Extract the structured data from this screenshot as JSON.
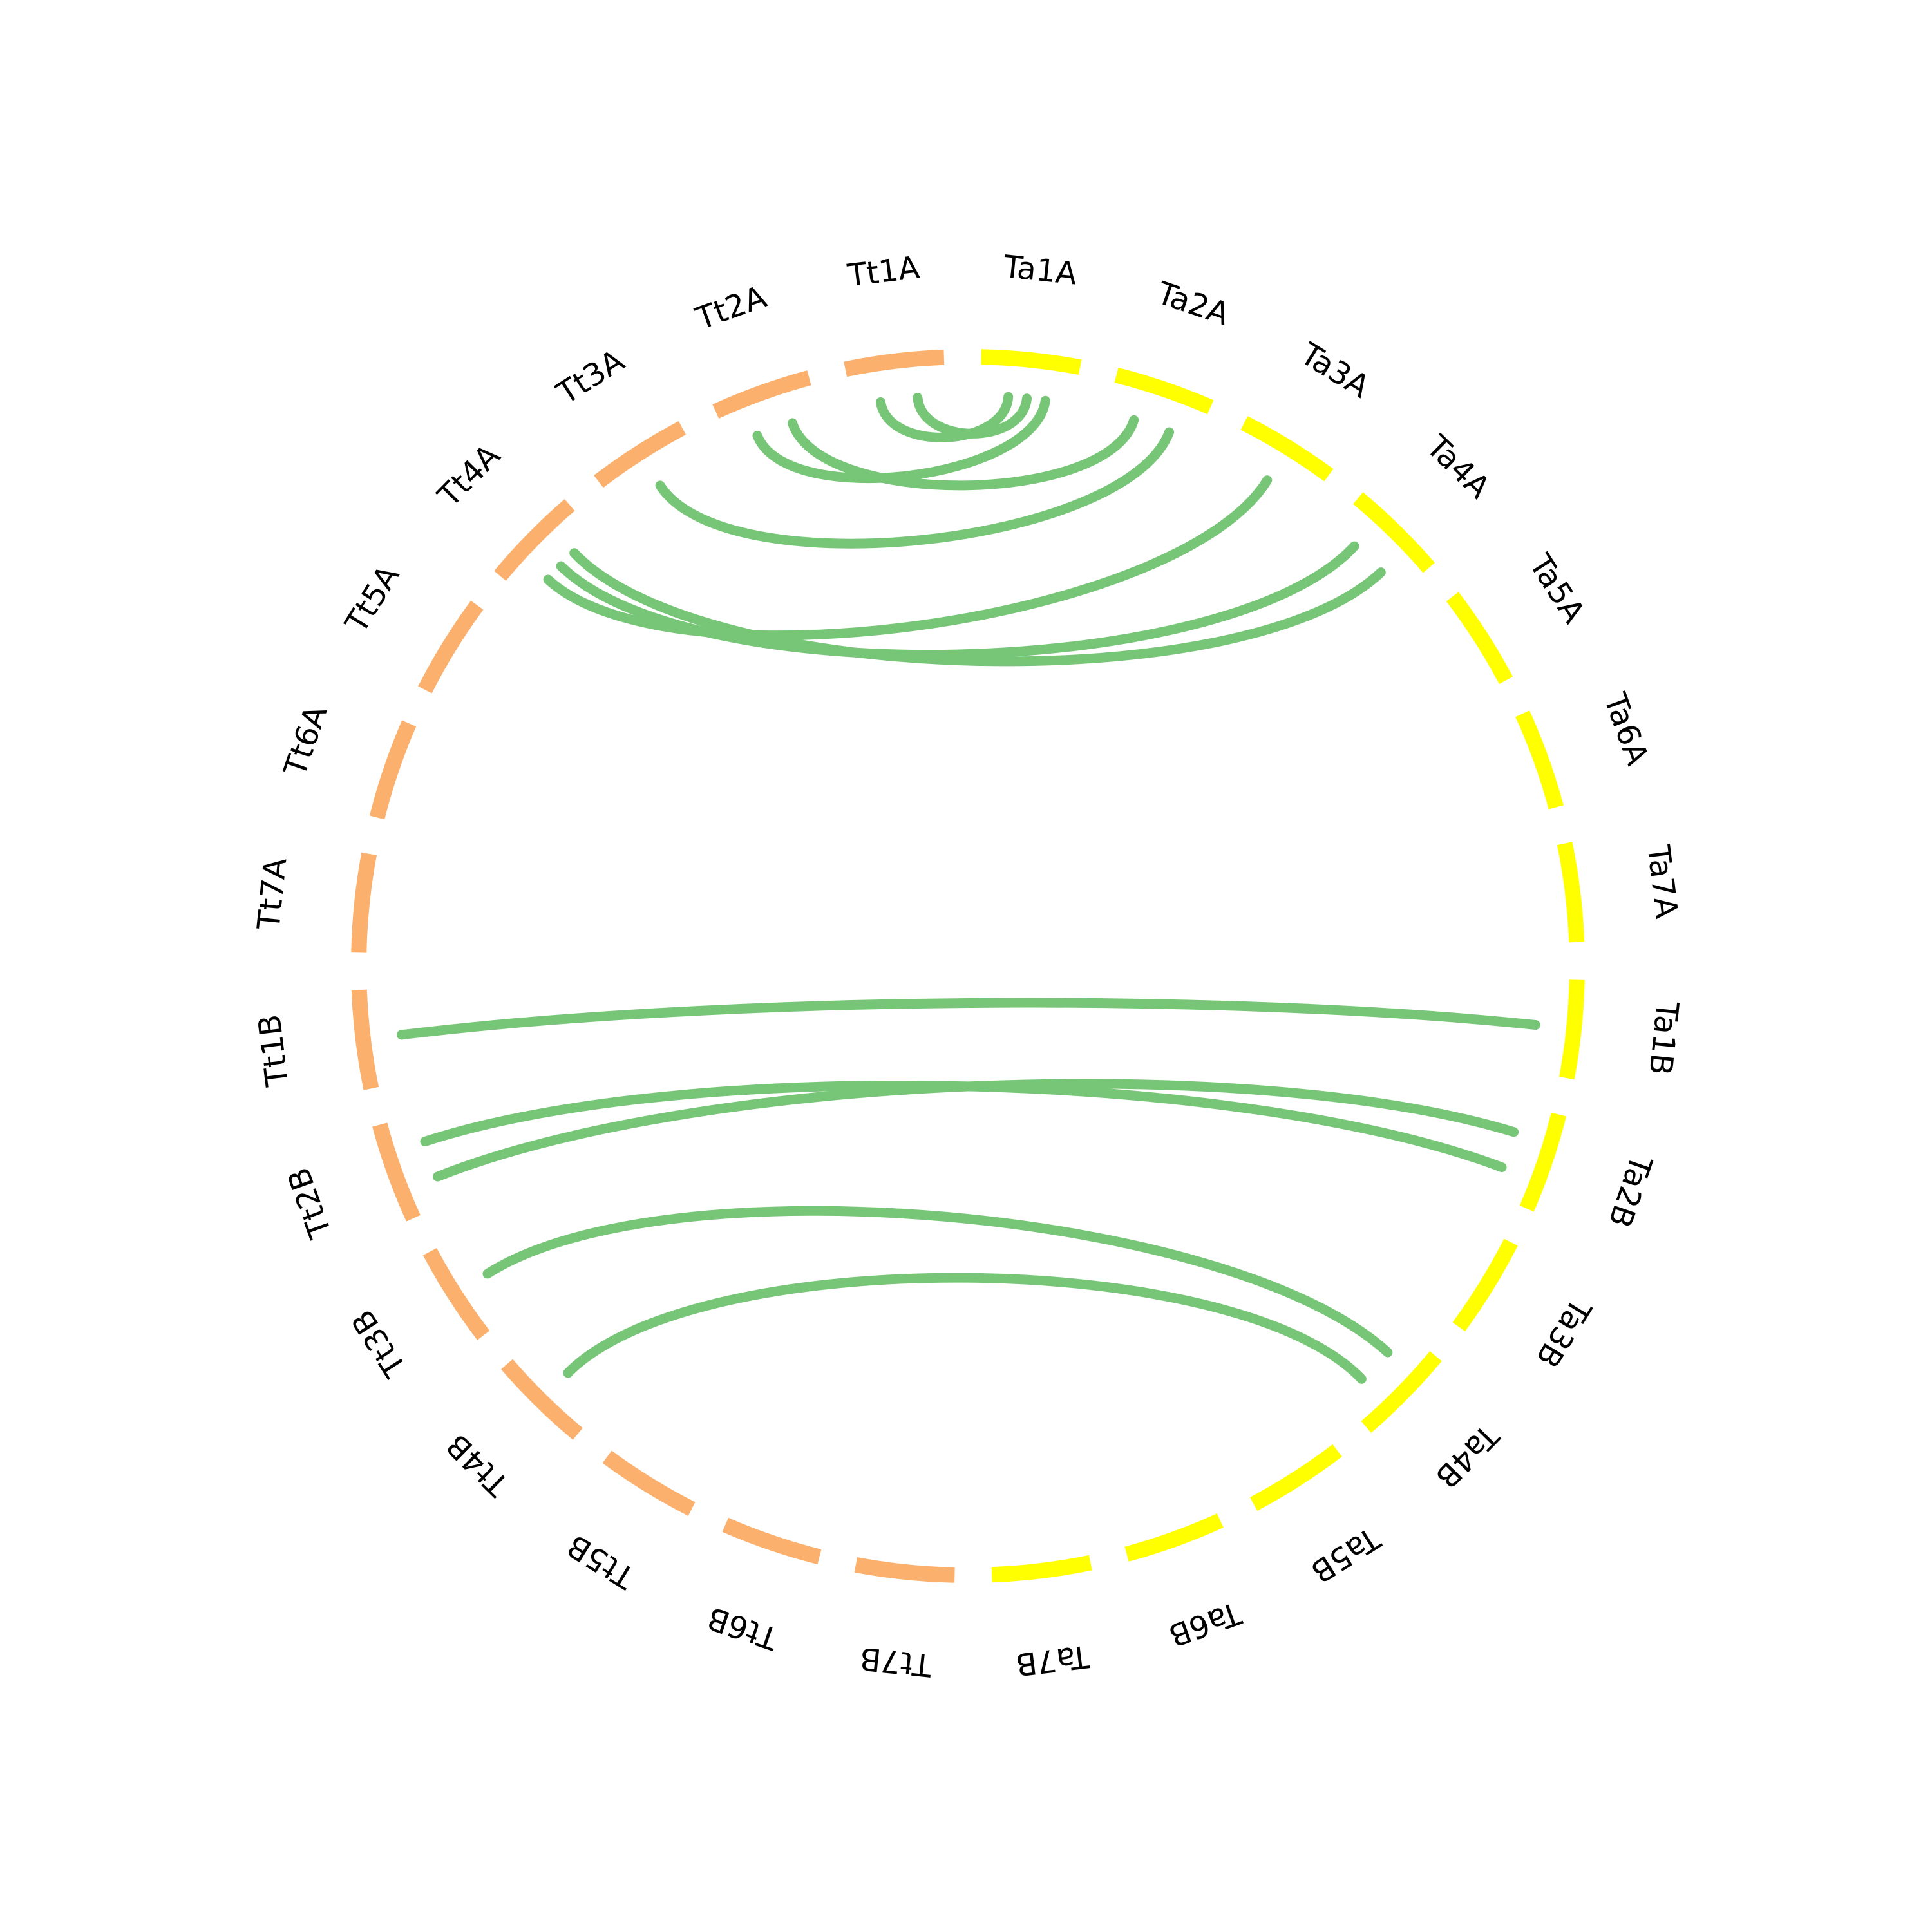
{
  "colors": {
    "background": "#ffffff",
    "link": "#77c677",
    "label": "#000000"
  },
  "genomes": [
    {
      "id": "Ta",
      "color": "#ffff00"
    },
    {
      "id": "Tt",
      "color": "#fbb06d"
    }
  ],
  "chromosomes": [
    {
      "name": "Ta1A",
      "genome": "Ta"
    },
    {
      "name": "Ta2A",
      "genome": "Ta"
    },
    {
      "name": "Ta3A",
      "genome": "Ta"
    },
    {
      "name": "Ta4A",
      "genome": "Ta"
    },
    {
      "name": "Ta5A",
      "genome": "Ta"
    },
    {
      "name": "Ta6A",
      "genome": "Ta"
    },
    {
      "name": "Ta7A",
      "genome": "Ta"
    },
    {
      "name": "Ta1B",
      "genome": "Ta"
    },
    {
      "name": "Ta2B",
      "genome": "Ta"
    },
    {
      "name": "Ta3B",
      "genome": "Ta"
    },
    {
      "name": "Ta4B",
      "genome": "Ta"
    },
    {
      "name": "Ta5B",
      "genome": "Ta"
    },
    {
      "name": "Ta6B",
      "genome": "Ta"
    },
    {
      "name": "Ta7B",
      "genome": "Ta"
    },
    {
      "name": "Tt7B",
      "genome": "Tt"
    },
    {
      "name": "Tt6B",
      "genome": "Tt"
    },
    {
      "name": "Tt5B",
      "genome": "Tt"
    },
    {
      "name": "Tt4B",
      "genome": "Tt"
    },
    {
      "name": "Tt3B",
      "genome": "Tt"
    },
    {
      "name": "Tt2B",
      "genome": "Tt"
    },
    {
      "name": "Tt1B",
      "genome": "Tt"
    },
    {
      "name": "Tt7A",
      "genome": "Tt"
    },
    {
      "name": "Tt6A",
      "genome": "Tt"
    },
    {
      "name": "Tt5A",
      "genome": "Tt"
    },
    {
      "name": "Tt4A",
      "genome": "Tt"
    },
    {
      "name": "Tt3A",
      "genome": "Tt"
    },
    {
      "name": "Tt2A",
      "genome": "Tt"
    },
    {
      "name": "Tt1A",
      "genome": "Tt"
    }
  ],
  "links": [
    {
      "from": "Tt1A",
      "to": "Ta1A"
    },
    {
      "from": "Tt1A",
      "to": "Ta1A"
    },
    {
      "from": "Tt2A",
      "to": "Ta1A"
    },
    {
      "from": "Tt2A",
      "to": "Ta2A"
    },
    {
      "from": "Tt3A",
      "to": "Ta2A"
    },
    {
      "from": "Tt4A",
      "to": "Ta3A"
    },
    {
      "from": "Tt4A",
      "to": "Ta4A"
    },
    {
      "from": "Tt4A",
      "to": "Ta4A"
    },
    {
      "from": "Tt1B",
      "to": "Ta1B"
    },
    {
      "from": "Tt2B",
      "to": "Ta2B"
    },
    {
      "from": "Tt2B",
      "to": "Ta2B"
    },
    {
      "from": "Tt3B",
      "to": "Ta4B"
    },
    {
      "from": "Tt4B",
      "to": "Ta4B"
    }
  ]
}
